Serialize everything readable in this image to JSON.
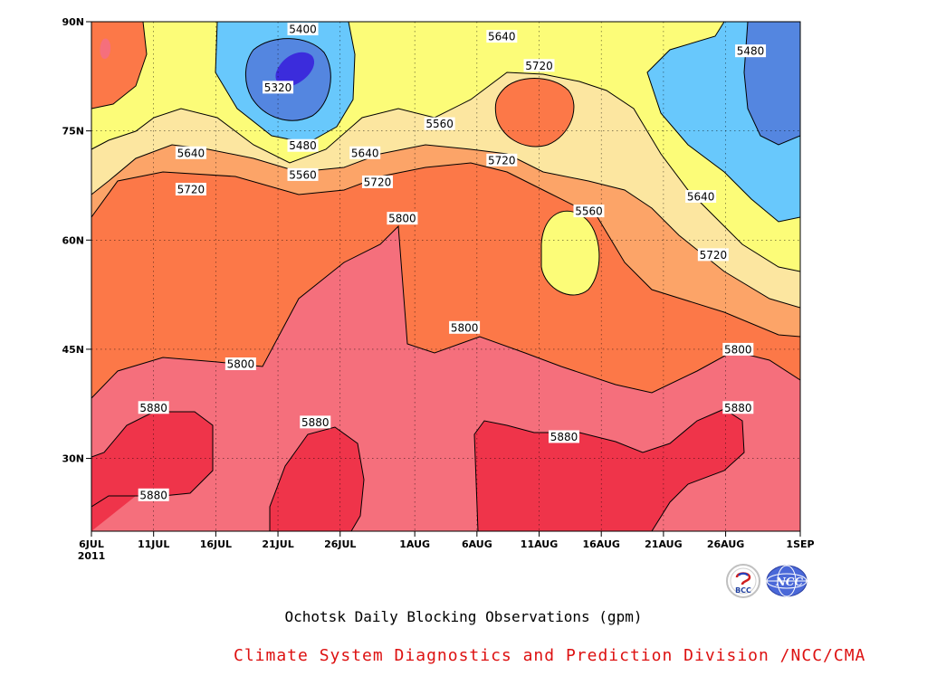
{
  "chart_data": {
    "type": "contour",
    "title": "Ochotsk Daily Blocking Observations (gpm)",
    "xlabel": "",
    "ylabel": "",
    "year": "2011",
    "x_ticks": [
      "6JUL",
      "11JUL",
      "16JUL",
      "21JUL",
      "26JUL",
      "1AUG",
      "6AUG",
      "11AUG",
      "16AUG",
      "21AUG",
      "26AUG",
      "1SEP"
    ],
    "y_ticks": [
      "30N",
      "45N",
      "60N",
      "75N",
      "90N"
    ],
    "xlim": [
      "6JUL",
      "1SEP"
    ],
    "ylim": [
      20,
      90
    ],
    "contour_interval": 80,
    "grid": true,
    "contour_labels": [
      {
        "text": "5400",
        "x": "23JUL",
        "y": 89
      },
      {
        "text": "5320",
        "x": "21JUL",
        "y": 81
      },
      {
        "text": "5480",
        "x": "23JUL",
        "y": 73
      },
      {
        "text": "5560",
        "x": "23JUL",
        "y": 69
      },
      {
        "text": "5640",
        "x": "28JUL",
        "y": 72
      },
      {
        "text": "5720",
        "x": "29JUL",
        "y": 68
      },
      {
        "text": "5560",
        "x": "3AUG",
        "y": 76
      },
      {
        "text": "5640",
        "x": "8AUG",
        "y": 88
      },
      {
        "text": "5720",
        "x": "11AUG",
        "y": 84
      },
      {
        "text": "5720",
        "x": "8AUG",
        "y": 71
      },
      {
        "text": "5480",
        "x": "28AUG",
        "y": 86
      },
      {
        "text": "5640",
        "x": "14JUL",
        "y": 72
      },
      {
        "text": "5720",
        "x": "14JUL",
        "y": 67
      },
      {
        "text": "5800",
        "x": "31JUL",
        "y": 63
      },
      {
        "text": "5560",
        "x": "15AUG",
        "y": 64
      },
      {
        "text": "5640",
        "x": "24AUG",
        "y": 66
      },
      {
        "text": "5720",
        "x": "25AUG",
        "y": 58
      },
      {
        "text": "5800",
        "x": "5AUG",
        "y": 48
      },
      {
        "text": "5800",
        "x": "18JUL",
        "y": 43
      },
      {
        "text": "5800",
        "x": "27AUG",
        "y": 45
      },
      {
        "text": "5880",
        "x": "11JUL",
        "y": 37
      },
      {
        "text": "5880",
        "x": "11JUL",
        "y": 25
      },
      {
        "text": "5880",
        "x": "24JUL",
        "y": 35
      },
      {
        "text": "5880",
        "x": "13AUG",
        "y": 33
      },
      {
        "text": "5880",
        "x": "27AUG",
        "y": 37
      }
    ]
  },
  "colors": {
    "lt5320": "#3b2cdc",
    "5320_5400": "#5486e0",
    "5400_5480": "#68c8fc",
    "5480_5560": "#fcfc78",
    "5560_5640": "#fce6a0",
    "5640_5720": "#fca468",
    "5720_5800": "#fc7848",
    "5800_5880": "#f56f7c",
    "gt5880": "#ef344a",
    "credit": "#dd1111"
  },
  "footer": {
    "title": "Ochotsk Daily Blocking Observations (gpm)",
    "credit": "Climate System Diagnostics and Prediction Division /NCC/CMA"
  },
  "logos": {
    "bcc_text": "BCC",
    "ncc_text": "NCC"
  }
}
